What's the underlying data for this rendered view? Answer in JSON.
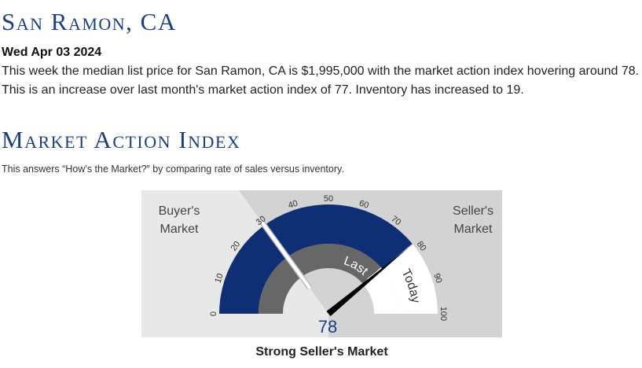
{
  "header": {
    "city": "San Ramon, CA",
    "date": "Wed Apr 03 2024",
    "summary": "This week the median list price for San Ramon, CA is $1,995,000 with the market action index hovering around 78. This is an increase over last month's market action index of 77. Inventory has increased to 19."
  },
  "section": {
    "title": "Market Action Index",
    "description": "This answers “How’s the Market?” by comparing rate of sales versus inventory."
  },
  "gauge": {
    "min": 0,
    "max": 100,
    "current_value": 78,
    "current_value_label": "78",
    "last_month_value": 77,
    "threshold": 30,
    "tick_labels": [
      "0",
      "10",
      "20",
      "30",
      "40",
      "50",
      "60",
      "70",
      "80",
      "90",
      "100"
    ],
    "buyers_label_line1": "Buyer's",
    "buyers_label_line2": "Market",
    "sellers_label_line1": "Seller's",
    "sellers_label_line2": "Market",
    "today_label": "Today",
    "last_month_label": "Last Month",
    "verdict": "Strong Seller's Market",
    "colors": {
      "outer_arc": "#0e2f74",
      "inner_arc": "#676767",
      "buyers_bg": "#e8e8e8",
      "sellers_bg": "#d3d3d3",
      "needle": "#000000",
      "value_text": "#1b3f87"
    }
  }
}
